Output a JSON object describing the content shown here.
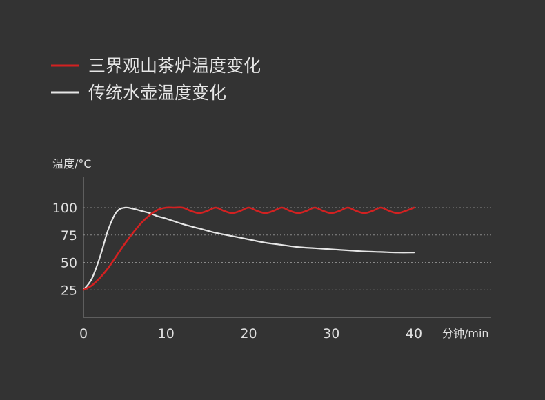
{
  "legend": {
    "items": [
      {
        "label": "三界观山茶炉温度变化",
        "color": "#d32121"
      },
      {
        "label": "传统水壶温度变化",
        "color": "#e6e6e6"
      }
    ]
  },
  "chart_data": {
    "type": "line",
    "ylabel": "温度/°C",
    "xlabel": "分钟/min",
    "xlim": [
      0,
      40
    ],
    "ylim": [
      0,
      100
    ],
    "x_ticks": [
      "0",
      "10",
      "20",
      "30",
      "40"
    ],
    "y_ticks": [
      "25",
      "50",
      "75",
      "100"
    ],
    "grid": "dotted horizontal at 25, 50, 75, 100",
    "background": "#333333",
    "series": [
      {
        "name": "三界观山茶炉温度变化",
        "color": "#d32121",
        "x": [
          0,
          1,
          2,
          3,
          4,
          5,
          6,
          7,
          8,
          9,
          10,
          11,
          12,
          13,
          14,
          15,
          16,
          17,
          18,
          19,
          20,
          21,
          22,
          23,
          24,
          25,
          26,
          27,
          28,
          29,
          30,
          31,
          32,
          33,
          34,
          35,
          36,
          37,
          38,
          39,
          40
        ],
        "y": [
          25,
          29,
          36,
          45,
          56,
          67,
          77,
          86,
          93,
          98,
          100,
          100,
          100,
          97,
          95,
          97,
          100,
          97,
          95,
          97,
          100,
          97,
          95,
          97,
          100,
          97,
          95,
          97,
          100,
          97,
          95,
          97,
          100,
          97,
          95,
          97,
          100,
          97,
          95,
          97,
          100
        ]
      },
      {
        "name": "传统水壶温度变化",
        "color": "#e6e6e6",
        "x": [
          0,
          1,
          2,
          3,
          4,
          5,
          6,
          7,
          8,
          9,
          10,
          12,
          14,
          16,
          18,
          20,
          22,
          24,
          26,
          28,
          30,
          32,
          34,
          36,
          38,
          40
        ],
        "y": [
          25,
          35,
          55,
          80,
          96,
          100,
          99,
          97,
          95,
          92,
          90,
          85,
          81,
          77,
          74,
          71,
          68,
          66,
          64,
          63,
          62,
          61,
          60,
          59.5,
          59,
          59
        ]
      }
    ]
  }
}
